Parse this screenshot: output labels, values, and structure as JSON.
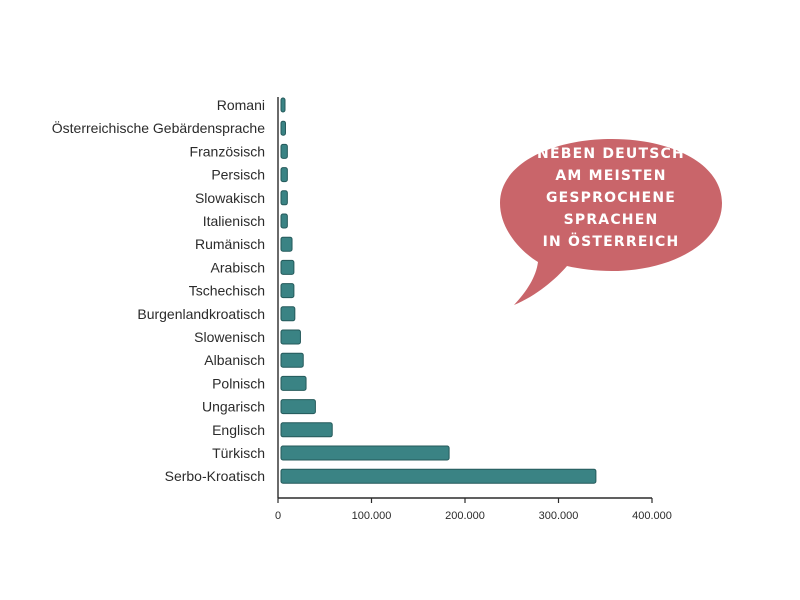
{
  "chart_data": {
    "type": "bar",
    "orientation": "horizontal",
    "categories": [
      "Romani",
      "Österreichische Gebärdensprache",
      "Französisch",
      "Persisch",
      "Slowakisch",
      "Italienisch",
      "Rumänisch",
      "Arabisch",
      "Tschechisch",
      "Burgenlandkroatisch",
      "Slowenisch",
      "Albanisch",
      "Polnisch",
      "Ungarisch",
      "Englisch",
      "Türkisch",
      "Serbo-Kroatisch"
    ],
    "values": [
      6000,
      8000,
      10000,
      10000,
      10000,
      10000,
      15000,
      17000,
      17000,
      18000,
      24000,
      27000,
      30000,
      40000,
      58000,
      183000,
      340000
    ],
    "xlim": [
      0,
      400000
    ],
    "xticks": [
      0,
      100000,
      200000,
      300000,
      400000
    ],
    "xtick_labels": [
      "0",
      "100.000",
      "200.000",
      "300.000",
      "400.000"
    ],
    "title": "",
    "xlabel": "",
    "ylabel": "",
    "grid": false,
    "bar_color": "#3a8384",
    "bar_edge_color": "#24595a"
  },
  "callout": {
    "lines": [
      "NEBEN DEUTSCH",
      "AM MEISTEN",
      "GESPROCHENE",
      "SPRACHEN",
      "IN ÖSTERREICH"
    ],
    "color": "#c9656a",
    "text_color": "#ffffff"
  }
}
